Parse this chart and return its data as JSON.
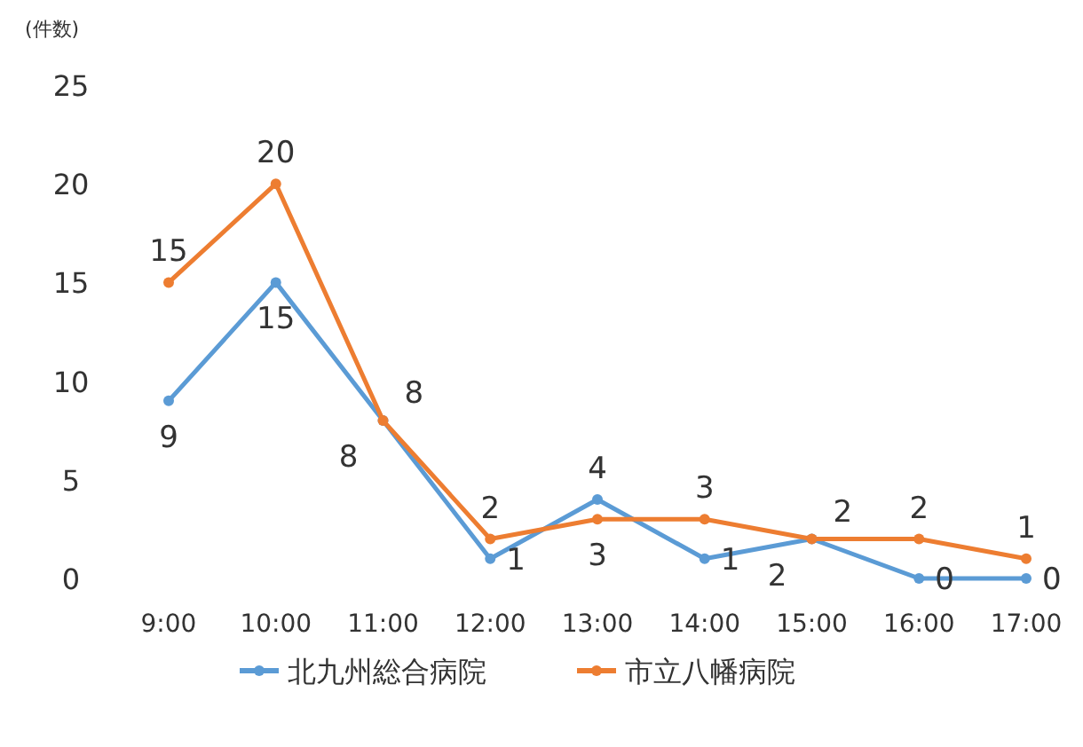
{
  "chart_data": {
    "type": "line",
    "ylabel": "(件数)",
    "categories": [
      "9:00",
      "10:00",
      "11:00",
      "12:00",
      "13:00",
      "14:00",
      "15:00",
      "16:00",
      "17:00"
    ],
    "series": [
      {
        "name": "北九州総合病院",
        "color": "#5b9bd5",
        "values": [
          9,
          15,
          8,
          1,
          4,
          1,
          2,
          0,
          0
        ]
      },
      {
        "name": "市立八幡病院",
        "color": "#ed7d31",
        "values": [
          15,
          20,
          8,
          2,
          3,
          3,
          2,
          2,
          1
        ]
      }
    ],
    "ylim": [
      0,
      25
    ],
    "yticks": [
      0,
      5,
      10,
      15,
      20,
      25
    ],
    "data_labels": true,
    "legend": "bottom",
    "marker": "circle",
    "grid": false
  }
}
